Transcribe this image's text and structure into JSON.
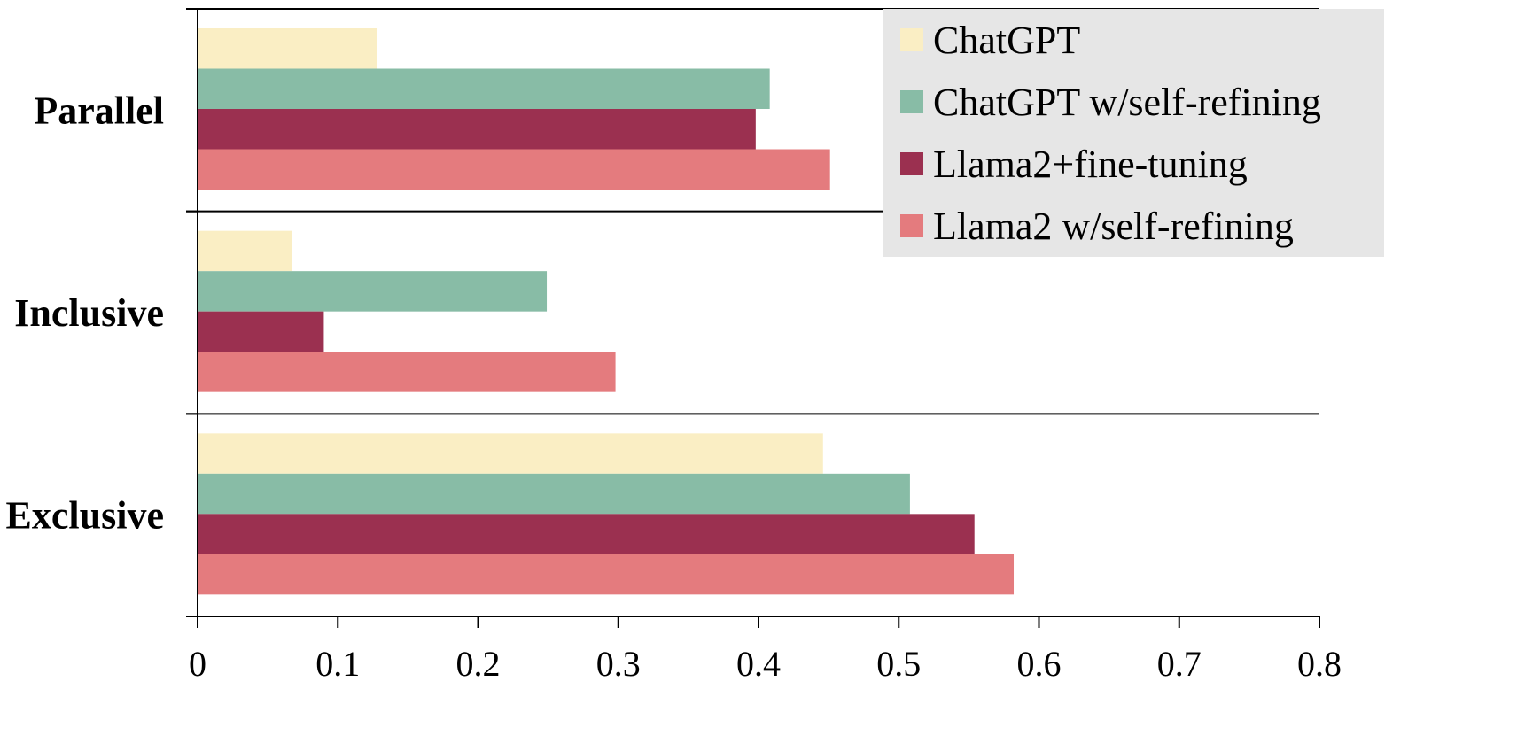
{
  "chart_data": {
    "type": "bar",
    "orientation": "horizontal",
    "categories": [
      "Parallel",
      "Inclusive",
      "Exclusive"
    ],
    "series": [
      {
        "name": "ChatGPT",
        "color": "#FAEEC4",
        "values": [
          0.128,
          0.067,
          0.446
        ]
      },
      {
        "name": "ChatGPT w/self-refining",
        "color": "#88BCA6",
        "values": [
          0.408,
          0.249,
          0.508
        ]
      },
      {
        "name": "Llama2+fine-tuning",
        "color": "#9B3050",
        "values": [
          0.398,
          0.09,
          0.554
        ]
      },
      {
        "name": "Llama2 w/self-refining",
        "color": "#E47B7E",
        "values": [
          0.451,
          0.298,
          0.582
        ]
      }
    ],
    "xlim": [
      0,
      0.8
    ],
    "xticks": [
      "0",
      "0.1",
      "0.2",
      "0.3",
      "0.4",
      "0.5",
      "0.6",
      "0.7",
      "0.8"
    ],
    "title": "",
    "xlabel": "",
    "ylabel": "",
    "legend_position": "top-right",
    "grid": false
  }
}
